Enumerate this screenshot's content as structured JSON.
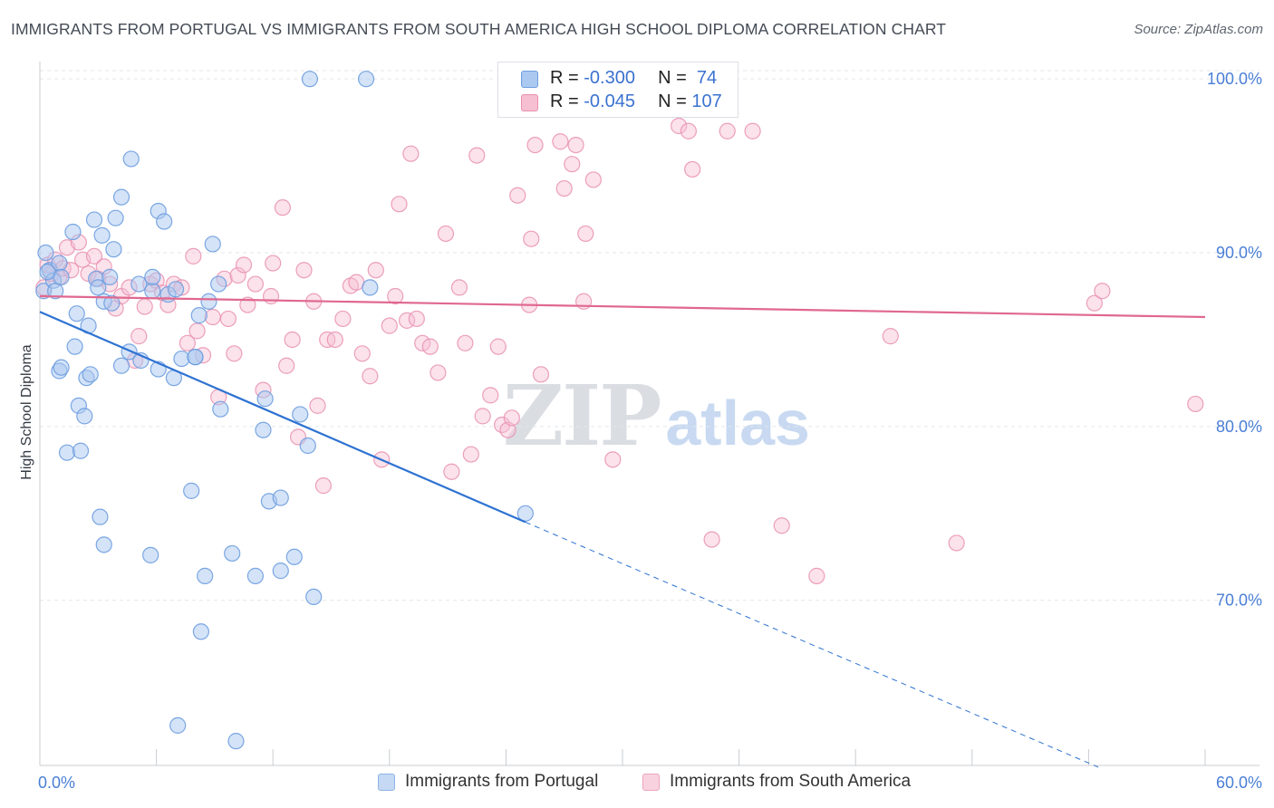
{
  "title": "IMMIGRANTS FROM PORTUGAL VS IMMIGRANTS FROM SOUTH AMERICA HIGH SCHOOL DIPLOMA CORRELATION CHART",
  "source": "Source: ZipAtlas.com",
  "watermark": {
    "zip": "ZIP",
    "atlas": "atlas"
  },
  "colors": {
    "blue_fill": "#aac8f0",
    "blue_stroke": "#6d9de0",
    "blue_line": "#2d72d2",
    "pink_fill": "#f6bfd2",
    "pink_stroke": "#e98fb0",
    "pink_line": "#e0688f",
    "tick_text": "#4a7fd6",
    "grid": "#e3e6ea"
  },
  "legend": {
    "rows": [
      {
        "r_label": "R = ",
        "r_value": "-0.300",
        "n_label": "N = ",
        "n_value": " 74"
      },
      {
        "r_label": "R = ",
        "r_value": "-0.045",
        "n_label": "N = ",
        "n_value": "107"
      }
    ]
  },
  "chart_data": {
    "type": "scatter",
    "title": "IMMIGRANTS FROM PORTUGAL VS IMMIGRANTS FROM SOUTH AMERICA HIGH SCHOOL DIPLOMA CORRELATION CHART",
    "xlabel": "",
    "ylabel": "High School Diploma",
    "xlim": [
      0,
      60
    ],
    "ylim": [
      60.5,
      101
    ],
    "x_tick_labels": [
      "0.0%",
      "60.0%"
    ],
    "y_ticks": [
      70,
      80,
      90,
      100
    ],
    "y_tick_labels": [
      "70.0%",
      "80.0%",
      "90.0%",
      "100.0%"
    ],
    "x_minor_ticks": [
      6,
      12,
      18,
      24,
      30,
      36,
      42,
      48,
      54
    ],
    "grid": "horizontal dashed",
    "legend_placement": "bottom",
    "series": [
      {
        "name": "Immigrants from Portugal",
        "color": "#aac8f0",
        "trend": {
          "x": [
            0,
            25
          ],
          "y": [
            86.6,
            74.5
          ],
          "dashed_extension": {
            "x": [
              25,
              54.5
            ],
            "y": [
              74.5,
              60.4
            ]
          }
        },
        "points": [
          [
            0.2,
            87.8
          ],
          [
            0.3,
            90.0
          ],
          [
            0.5,
            89.0
          ],
          [
            0.7,
            88.4
          ],
          [
            0.8,
            87.8
          ],
          [
            1.0,
            89.4
          ],
          [
            0.4,
            88.9
          ],
          [
            1.1,
            88.6
          ],
          [
            1.0,
            83.2
          ],
          [
            1.1,
            83.4
          ],
          [
            1.4,
            78.5
          ],
          [
            1.8,
            84.6
          ],
          [
            2.0,
            81.2
          ],
          [
            1.9,
            86.5
          ],
          [
            2.1,
            78.6
          ],
          [
            2.3,
            80.6
          ],
          [
            2.4,
            82.8
          ],
          [
            2.5,
            85.8
          ],
          [
            2.6,
            83.0
          ],
          [
            1.7,
            91.2
          ],
          [
            2.8,
            91.9
          ],
          [
            2.9,
            88.5
          ],
          [
            3.0,
            88.0
          ],
          [
            3.2,
            91.0
          ],
          [
            3.3,
            87.2
          ],
          [
            3.1,
            74.8
          ],
          [
            3.3,
            73.2
          ],
          [
            3.6,
            88.6
          ],
          [
            3.7,
            87.1
          ],
          [
            3.8,
            90.2
          ],
          [
            3.9,
            92.0
          ],
          [
            4.2,
            83.5
          ],
          [
            4.2,
            93.2
          ],
          [
            4.6,
            84.3
          ],
          [
            4.7,
            95.4
          ],
          [
            5.1,
            88.2
          ],
          [
            5.2,
            83.8
          ],
          [
            5.7,
            72.6
          ],
          [
            5.8,
            87.8
          ],
          [
            5.8,
            88.6
          ],
          [
            6.1,
            92.4
          ],
          [
            6.1,
            83.3
          ],
          [
            6.4,
            91.8
          ],
          [
            6.6,
            87.6
          ],
          [
            6.9,
            82.8
          ],
          [
            7.0,
            87.9
          ],
          [
            7.1,
            62.8
          ],
          [
            7.3,
            83.9
          ],
          [
            7.8,
            76.3
          ],
          [
            8.0,
            84.0
          ],
          [
            8.2,
            86.4
          ],
          [
            8.3,
            68.2
          ],
          [
            8.5,
            71.4
          ],
          [
            8.7,
            87.2
          ],
          [
            8.9,
            90.5
          ],
          [
            9.2,
            88.2
          ],
          [
            9.3,
            81.0
          ],
          [
            9.9,
            72.7
          ],
          [
            10.1,
            61.9
          ],
          [
            11.1,
            71.4
          ],
          [
            11.5,
            79.8
          ],
          [
            11.6,
            81.6
          ],
          [
            11.8,
            75.7
          ],
          [
            12.4,
            71.7
          ],
          [
            12.4,
            75.9
          ],
          [
            13.1,
            72.5
          ],
          [
            13.4,
            80.7
          ],
          [
            13.8,
            78.9
          ],
          [
            13.9,
            100.0
          ],
          [
            14.1,
            70.2
          ],
          [
            16.8,
            100.0
          ],
          [
            17.0,
            88.0
          ],
          [
            25.0,
            75.0
          ],
          [
            8.0,
            84.0
          ]
        ]
      },
      {
        "name": "Immigrants from South America",
        "color": "#f6bfd2",
        "trend": {
          "x": [
            0,
            60
          ],
          "y": [
            87.5,
            86.3
          ]
        },
        "points": [
          [
            0.2,
            88.0
          ],
          [
            0.4,
            89.3
          ],
          [
            0.6,
            88.8
          ],
          [
            0.8,
            89.6
          ],
          [
            1.0,
            88.6
          ],
          [
            1.2,
            89.1
          ],
          [
            1.4,
            90.3
          ],
          [
            1.6,
            89.0
          ],
          [
            2.0,
            90.6
          ],
          [
            2.2,
            89.6
          ],
          [
            2.5,
            88.8
          ],
          [
            2.8,
            89.8
          ],
          [
            3.0,
            88.5
          ],
          [
            3.3,
            89.2
          ],
          [
            3.6,
            88.2
          ],
          [
            3.9,
            86.8
          ],
          [
            4.2,
            87.5
          ],
          [
            4.6,
            88.0
          ],
          [
            4.9,
            83.8
          ],
          [
            5.1,
            85.2
          ],
          [
            5.4,
            86.9
          ],
          [
            5.7,
            88.2
          ],
          [
            6.0,
            88.4
          ],
          [
            6.3,
            87.7
          ],
          [
            6.6,
            87.0
          ],
          [
            6.9,
            88.2
          ],
          [
            7.3,
            88.0
          ],
          [
            7.6,
            84.8
          ],
          [
            7.9,
            89.8
          ],
          [
            8.1,
            85.5
          ],
          [
            8.4,
            84.1
          ],
          [
            8.9,
            86.3
          ],
          [
            9.2,
            81.7
          ],
          [
            9.5,
            88.5
          ],
          [
            9.7,
            86.2
          ],
          [
            10.0,
            84.2
          ],
          [
            10.2,
            88.7
          ],
          [
            10.5,
            89.3
          ],
          [
            10.7,
            87.0
          ],
          [
            11.1,
            88.2
          ],
          [
            11.5,
            82.1
          ],
          [
            11.9,
            87.5
          ],
          [
            12.0,
            89.4
          ],
          [
            12.5,
            92.6
          ],
          [
            12.7,
            83.5
          ],
          [
            13.0,
            85.0
          ],
          [
            13.3,
            79.4
          ],
          [
            13.6,
            89.0
          ],
          [
            14.1,
            87.2
          ],
          [
            14.3,
            81.2
          ],
          [
            14.6,
            76.6
          ],
          [
            14.8,
            85.0
          ],
          [
            15.2,
            85.0
          ],
          [
            15.6,
            86.2
          ],
          [
            16.0,
            88.1
          ],
          [
            16.3,
            88.3
          ],
          [
            16.6,
            84.2
          ],
          [
            17.0,
            82.9
          ],
          [
            17.3,
            89.0
          ],
          [
            17.6,
            78.1
          ],
          [
            18.0,
            85.8
          ],
          [
            18.3,
            87.5
          ],
          [
            18.5,
            92.8
          ],
          [
            18.9,
            86.1
          ],
          [
            19.1,
            95.7
          ],
          [
            19.4,
            86.2
          ],
          [
            19.7,
            84.8
          ],
          [
            20.1,
            84.6
          ],
          [
            20.5,
            83.1
          ],
          [
            20.9,
            91.1
          ],
          [
            21.2,
            77.4
          ],
          [
            21.6,
            88.0
          ],
          [
            21.9,
            84.8
          ],
          [
            22.2,
            78.4
          ],
          [
            22.5,
            95.6
          ],
          [
            22.8,
            80.6
          ],
          [
            23.2,
            81.8
          ],
          [
            23.6,
            84.6
          ],
          [
            23.8,
            80.1
          ],
          [
            24.1,
            79.8
          ],
          [
            24.3,
            80.5
          ],
          [
            24.6,
            93.3
          ],
          [
            25.2,
            87.0
          ],
          [
            25.3,
            90.8
          ],
          [
            25.5,
            96.2
          ],
          [
            25.8,
            83.0
          ],
          [
            26.8,
            96.4
          ],
          [
            27.0,
            93.7
          ],
          [
            27.4,
            95.1
          ],
          [
            27.6,
            96.2
          ],
          [
            28.0,
            87.2
          ],
          [
            28.1,
            91.1
          ],
          [
            28.5,
            94.2
          ],
          [
            29.5,
            78.1
          ],
          [
            32.9,
            97.3
          ],
          [
            33.4,
            97.0
          ],
          [
            33.6,
            94.8
          ],
          [
            34.6,
            73.5
          ],
          [
            35.4,
            97.0
          ],
          [
            35.2,
            100.0
          ],
          [
            36.7,
            97.0
          ],
          [
            38.2,
            74.3
          ],
          [
            40.0,
            71.4
          ],
          [
            43.8,
            85.2
          ],
          [
            47.2,
            73.3
          ],
          [
            54.3,
            87.1
          ],
          [
            54.7,
            87.8
          ],
          [
            59.5,
            81.3
          ]
        ]
      }
    ]
  },
  "bottom_legend": [
    {
      "label": "Immigrants from Portugal"
    },
    {
      "label": "Immigrants from South America"
    }
  ]
}
